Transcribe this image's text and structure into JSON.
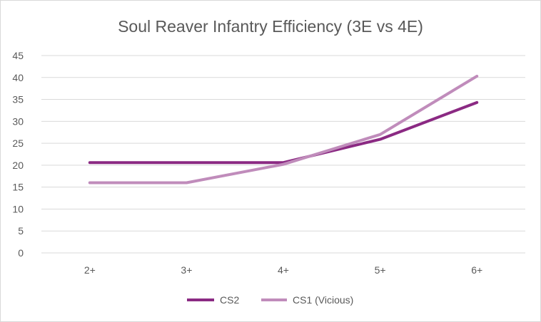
{
  "chart_data": {
    "type": "line",
    "title": "Soul Reaver Infantry Efficiency (3E vs 4E)",
    "xlabel": "",
    "ylabel": "",
    "categories": [
      "2+",
      "3+",
      "4+",
      "5+",
      "6+"
    ],
    "ylim": [
      0,
      45
    ],
    "yticks": [
      "0",
      "5",
      "10",
      "15",
      "20",
      "25",
      "30",
      "35",
      "40",
      "45"
    ],
    "grid": true,
    "legend_position": "bottom",
    "series": [
      {
        "name": "CS2",
        "color": "#8b2a83",
        "values": [
          20.6,
          20.6,
          20.6,
          25.9,
          34.3
        ]
      },
      {
        "name": "CS1 (Vicious)",
        "color": "#c08cbb",
        "values": [
          16.0,
          16.0,
          20.2,
          27.0,
          40.3
        ]
      }
    ]
  }
}
